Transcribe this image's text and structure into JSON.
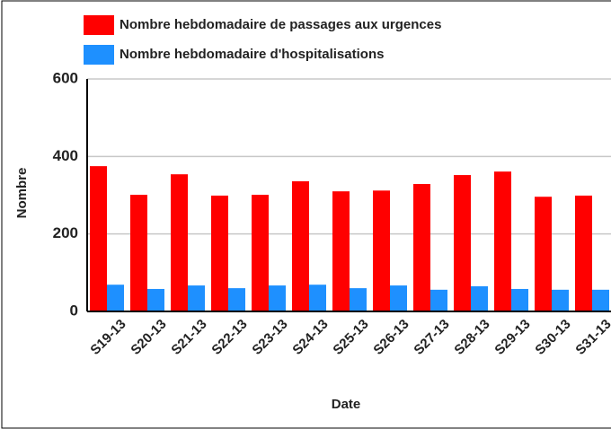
{
  "chart_data": {
    "type": "bar",
    "y_label": "Nombre",
    "x_label": "Date",
    "categories": [
      "S19-13",
      "S20-13",
      "S21-13",
      "S22-13",
      "S23-13",
      "S24-13",
      "S25-13",
      "S26-13",
      "S27-13",
      "S28-13",
      "S29-13",
      "S30-13",
      "S31-13"
    ],
    "series": [
      {
        "name": "Nombre hebdomadaire de passages aux urgences",
        "color": "#ff0000",
        "values": [
          375,
          301,
          354,
          299,
          301,
          336,
          310,
          312,
          329,
          352,
          361,
          296,
          299
        ]
      },
      {
        "name": "Nombre hebdomadaire d'hospitalisations",
        "color": "#1e90ff",
        "values": [
          69,
          58,
          67,
          60,
          67,
          69,
          60,
          67,
          56,
          65,
          58,
          56,
          56
        ]
      }
    ],
    "ylim": [
      0,
      600
    ],
    "yticks": [
      0,
      200,
      400,
      600
    ],
    "grid": true
  }
}
